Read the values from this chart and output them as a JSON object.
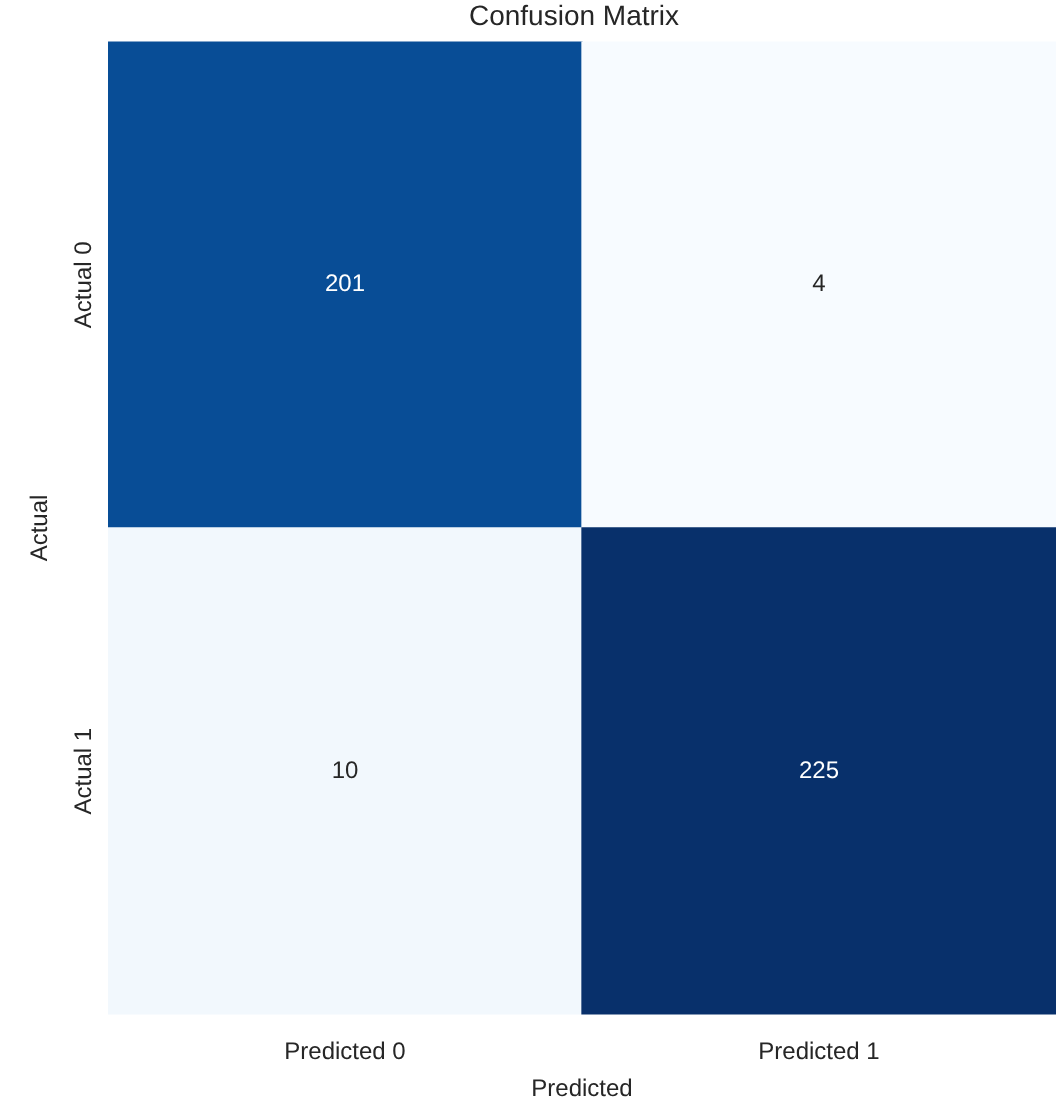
{
  "chart_data": {
    "type": "heatmap",
    "title": "Confusion Matrix",
    "xlabel": "Predicted",
    "ylabel": "Actual",
    "categories": [
      "Predicted 0",
      "Predicted 1"
    ],
    "y_categories": [
      "Actual 0",
      "Actual 1"
    ],
    "data_labels": true,
    "cells": [
      [
        201,
        4
      ],
      [
        10,
        225
      ]
    ]
  }
}
